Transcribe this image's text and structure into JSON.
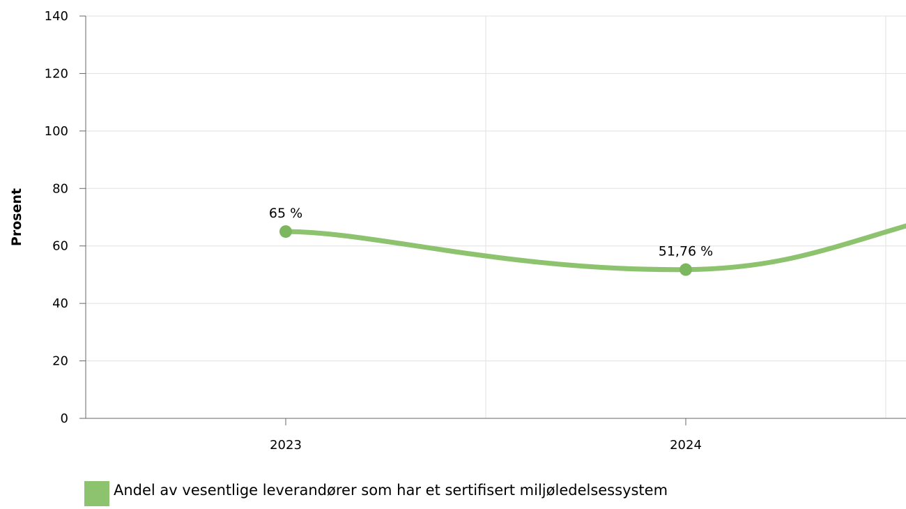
{
  "colors": {
    "series": "#8dc26f",
    "marker": "#7cb65e",
    "grid": "#e0e0e0",
    "axis": "#666666"
  },
  "chart_data": {
    "type": "line",
    "title": "",
    "xlabel": "",
    "ylabel": "Prosent",
    "ylim": [
      0,
      140
    ],
    "yticks": [
      "0",
      "20",
      "40",
      "60",
      "80",
      "100",
      "120",
      "140"
    ],
    "categories": [
      "2023",
      "2024"
    ],
    "series": [
      {
        "name": "Andel av vesentlige leverandører som har et sertifisert miljøledelsessystem",
        "values": [
          65,
          51.76
        ],
        "labels": [
          "65 %",
          "51,76 %"
        ]
      }
    ],
    "grid": true,
    "legend": "bottom-left"
  }
}
